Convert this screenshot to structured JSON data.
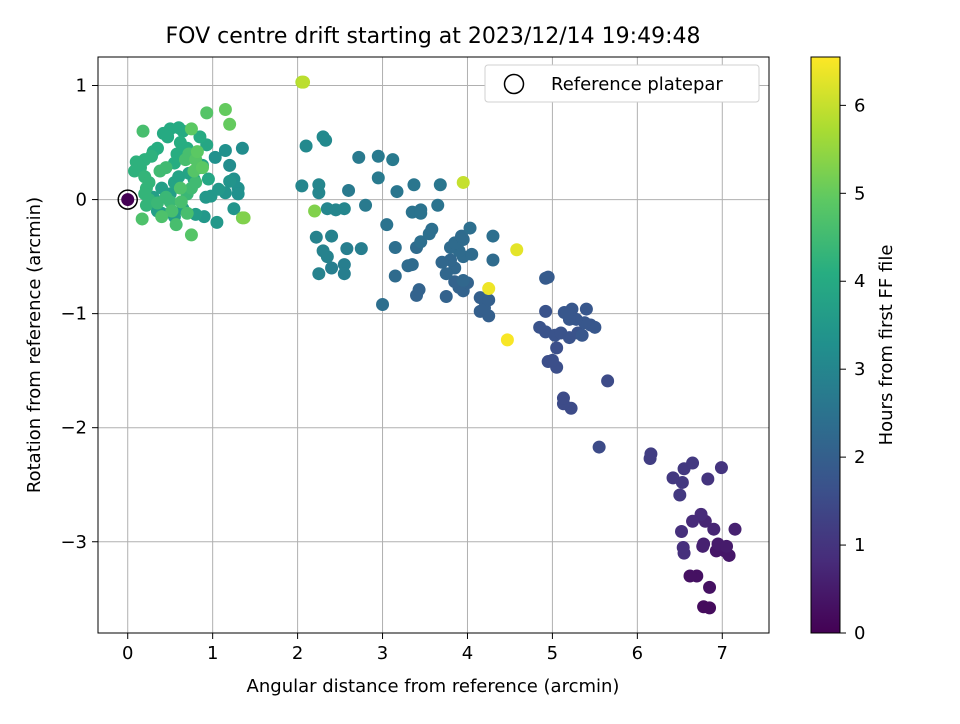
{
  "chart_data": {
    "type": "scatter",
    "title": "FOV centre drift starting at 2023/12/14 19:49:48",
    "xlabel": "Angular distance from reference (arcmin)",
    "ylabel": "Rotation from reference (arcmin)",
    "xlim": [
      -0.35,
      7.55
    ],
    "ylim": [
      -3.8,
      1.25
    ],
    "xticks": [
      0,
      1,
      2,
      3,
      4,
      5,
      6,
      7
    ],
    "yticks": [
      1,
      0,
      -1,
      -2,
      -3
    ],
    "x_tick_labels": [
      "0",
      "1",
      "2",
      "3",
      "4",
      "5",
      "6",
      "7"
    ],
    "y_tick_labels": [
      "1",
      "0",
      "−1",
      "−2",
      "−3"
    ],
    "grid": true,
    "colormap": "viridis",
    "colorbar": {
      "label": "Hours from first FF file",
      "range": [
        0,
        6.55
      ],
      "ticks": [
        0,
        1,
        2,
        3,
        4,
        5,
        6
      ],
      "tick_labels": [
        "0",
        "1",
        "2",
        "3",
        "4",
        "5",
        "6"
      ]
    },
    "legend": {
      "position": "top-right",
      "entries": [
        {
          "label": "Reference platepar",
          "marker": "hollow-circle"
        }
      ]
    },
    "reference_point": {
      "x": 0,
      "y": 0
    },
    "points": [
      [
        0,
        0,
        0.0
      ],
      [
        6.78,
        -3.57,
        0.2
      ],
      [
        6.85,
        -3.58,
        0.2
      ],
      [
        6.85,
        -3.4,
        0.3
      ],
      [
        6.7,
        -3.3,
        0.3
      ],
      [
        6.62,
        -3.3,
        0.3
      ],
      [
        7.03,
        -3.08,
        0.4
      ],
      [
        6.93,
        -3.08,
        0.4
      ],
      [
        7.08,
        -3.12,
        0.4
      ],
      [
        6.95,
        -3.02,
        0.5
      ],
      [
        7.05,
        -3.04,
        0.5
      ],
      [
        6.77,
        -3.04,
        0.6
      ],
      [
        6.78,
        -3.02,
        0.6
      ],
      [
        7.15,
        -2.89,
        0.6
      ],
      [
        6.9,
        -2.89,
        0.7
      ],
      [
        6.8,
        -2.82,
        0.7
      ],
      [
        6.75,
        -2.76,
        0.8
      ],
      [
        6.65,
        -2.82,
        0.8
      ],
      [
        6.55,
        -3.1,
        0.9
      ],
      [
        6.54,
        -3.05,
        0.9
      ],
      [
        6.52,
        -2.91,
        0.9
      ],
      [
        6.83,
        -2.45,
        1.0
      ],
      [
        6.99,
        -2.35,
        1.0
      ],
      [
        6.5,
        -2.59,
        1.1
      ],
      [
        6.53,
        -2.48,
        1.1
      ],
      [
        6.42,
        -2.44,
        1.1
      ],
      [
        6.55,
        -2.36,
        1.1
      ],
      [
        6.65,
        -2.31,
        1.1
      ],
      [
        6.15,
        -2.27,
        1.2
      ],
      [
        6.16,
        -2.23,
        1.2
      ],
      [
        5.55,
        -2.17,
        1.5
      ],
      [
        5.65,
        -1.59,
        1.5
      ],
      [
        5.22,
        -1.83,
        1.5
      ],
      [
        5.13,
        -1.79,
        1.5
      ],
      [
        5.13,
        -1.74,
        1.5
      ],
      [
        5.05,
        -1.47,
        1.6
      ],
      [
        4.95,
        -1.42,
        1.6
      ],
      [
        5.0,
        -1.41,
        1.6
      ],
      [
        5.05,
        -1.3,
        1.6
      ],
      [
        4.92,
        -1.16,
        1.7
      ],
      [
        4.85,
        -1.12,
        1.7
      ],
      [
        4.92,
        -0.98,
        1.7
      ],
      [
        5.03,
        -1.19,
        1.7
      ],
      [
        5.1,
        -1.17,
        1.7
      ],
      [
        5.2,
        -1.21,
        1.7
      ],
      [
        5.3,
        -1.17,
        1.7
      ],
      [
        5.35,
        -1.19,
        1.8
      ],
      [
        5.45,
        -1.1,
        1.8
      ],
      [
        5.5,
        -1.12,
        1.8
      ],
      [
        5.38,
        -1.08,
        1.8
      ],
      [
        5.28,
        -1.05,
        1.8
      ],
      [
        5.2,
        -1.05,
        1.8
      ],
      [
        5.14,
        -0.99,
        1.8
      ],
      [
        5.23,
        -0.96,
        1.8
      ],
      [
        5.4,
        -0.96,
        1.8
      ],
      [
        4.95,
        -0.68,
        1.9
      ],
      [
        4.92,
        -0.69,
        1.9
      ],
      [
        5.17,
        -1.0,
        1.8
      ],
      [
        4.15,
        -0.98,
        2.0
      ],
      [
        4.25,
        -1.02,
        2.0
      ],
      [
        4.2,
        -0.95,
        2.0
      ],
      [
        4.15,
        -0.86,
        2.0
      ],
      [
        4.25,
        -0.88,
        2.0
      ],
      [
        3.9,
        -0.77,
        2.1
      ],
      [
        3.95,
        -0.8,
        2.1
      ],
      [
        3.85,
        -0.72,
        2.1
      ],
      [
        4.0,
        -0.73,
        2.1
      ],
      [
        3.75,
        -0.85,
        2.1
      ],
      [
        3.95,
        -0.71,
        2.2
      ],
      [
        3.4,
        -0.84,
        2.1
      ],
      [
        3.43,
        -0.79,
        2.1
      ],
      [
        3.85,
        -0.6,
        2.2
      ],
      [
        3.75,
        -0.65,
        2.2
      ],
      [
        3.8,
        -0.53,
        2.2
      ],
      [
        3.7,
        -0.55,
        2.2
      ],
      [
        3.95,
        -0.5,
        2.3
      ],
      [
        3.9,
        -0.45,
        2.3
      ],
      [
        3.8,
        -0.42,
        2.3
      ],
      [
        3.85,
        -0.38,
        2.3
      ],
      [
        3.95,
        -0.35,
        2.3
      ],
      [
        4.05,
        -0.48,
        2.3
      ],
      [
        3.93,
        -0.32,
        2.3
      ],
      [
        4.03,
        -0.25,
        2.4
      ],
      [
        4.3,
        -0.53,
        2.3
      ],
      [
        4.3,
        -0.32,
        2.4
      ],
      [
        3.4,
        -0.42,
        2.3
      ],
      [
        3.35,
        -0.57,
        2.3
      ],
      [
        3.3,
        -0.58,
        2.3
      ],
      [
        3.15,
        -0.67,
        2.3
      ],
      [
        3.15,
        -0.42,
        2.4
      ],
      [
        3.05,
        -0.22,
        2.5
      ],
      [
        3.0,
        -0.92,
        2.4
      ],
      [
        3.45,
        -0.37,
        2.4
      ],
      [
        3.55,
        -0.3,
        2.4
      ],
      [
        3.58,
        -0.26,
        2.4
      ],
      [
        3.35,
        -0.11,
        2.5
      ],
      [
        3.45,
        -0.09,
        2.5
      ],
      [
        3.45,
        -0.12,
        2.5
      ],
      [
        3.65,
        -0.05,
        2.5
      ],
      [
        3.68,
        0.13,
        2.6
      ],
      [
        3.37,
        0.13,
        2.6
      ],
      [
        3.17,
        0.07,
        2.6
      ],
      [
        2.95,
        0.19,
        2.7
      ],
      [
        2.95,
        0.38,
        2.7
      ],
      [
        3.12,
        0.35,
        2.7
      ],
      [
        2.72,
        0.37,
        2.7
      ],
      [
        2.8,
        -0.05,
        2.7
      ],
      [
        2.6,
        0.08,
        2.7
      ],
      [
        2.75,
        -0.43,
        2.8
      ],
      [
        2.58,
        -0.43,
        2.8
      ],
      [
        2.55,
        -0.57,
        2.8
      ],
      [
        2.55,
        -0.65,
        2.8
      ],
      [
        2.4,
        -0.6,
        2.8
      ],
      [
        2.35,
        -0.5,
        2.9
      ],
      [
        2.3,
        -0.45,
        2.9
      ],
      [
        2.25,
        -0.65,
        2.9
      ],
      [
        2.22,
        -0.33,
        2.9
      ],
      [
        2.4,
        -0.32,
        2.9
      ],
      [
        2.35,
        -0.08,
        3.0
      ],
      [
        2.45,
        -0.09,
        3.0
      ],
      [
        2.55,
        -0.08,
        3.0
      ],
      [
        2.25,
        0.06,
        3.0
      ],
      [
        2.25,
        0.13,
        3.0
      ],
      [
        2.05,
        0.12,
        3.0
      ],
      [
        2.1,
        0.47,
        3.1
      ],
      [
        2.3,
        0.55,
        3.1
      ],
      [
        2.33,
        0.52,
        3.1
      ],
      [
        1.35,
        0.45,
        3.2
      ],
      [
        1.2,
        0.3,
        3.2
      ],
      [
        1.15,
        0.43,
        3.3
      ],
      [
        1.03,
        0.37,
        3.3
      ],
      [
        1.25,
        0.18,
        3.3
      ],
      [
        1.3,
        0.1,
        3.3
      ],
      [
        1.3,
        0.05,
        3.3
      ],
      [
        1.2,
        0.16,
        3.4
      ],
      [
        1.15,
        0.06,
        3.4
      ],
      [
        1.07,
        0.09,
        3.5
      ],
      [
        0.98,
        0.03,
        3.5
      ],
      [
        0.92,
        0.02,
        3.5
      ],
      [
        1.25,
        -0.08,
        3.4
      ],
      [
        1.05,
        -0.2,
        3.5
      ],
      [
        0.9,
        -0.15,
        3.5
      ],
      [
        0.8,
        -0.13,
        3.6
      ],
      [
        0.65,
        -0.08,
        3.6
      ],
      [
        0.55,
        -0.15,
        3.6
      ],
      [
        0.4,
        -0.12,
        3.7
      ],
      [
        0.35,
        -0.1,
        3.7
      ],
      [
        0.3,
        0.02,
        3.7
      ],
      [
        0.4,
        0.1,
        3.7
      ],
      [
        0.5,
        0.05,
        3.7
      ],
      [
        0.55,
        0.15,
        3.8
      ],
      [
        0.6,
        0.2,
        3.8
      ],
      [
        0.72,
        0.23,
        3.8
      ],
      [
        0.78,
        0.18,
        3.8
      ],
      [
        0.85,
        0.28,
        3.8
      ],
      [
        0.88,
        0.3,
        3.8
      ],
      [
        0.95,
        0.18,
        3.9
      ],
      [
        0.93,
        0.48,
        3.9
      ],
      [
        0.85,
        0.55,
        4.0
      ],
      [
        0.65,
        0.6,
        4.0
      ],
      [
        0.6,
        0.63,
        4.0
      ],
      [
        0.5,
        0.62,
        4.0
      ],
      [
        0.42,
        0.58,
        4.0
      ],
      [
        0.47,
        0.55,
        4.0
      ],
      [
        0.62,
        0.5,
        4.1
      ],
      [
        0.7,
        0.45,
        4.1
      ],
      [
        0.58,
        0.4,
        4.1
      ],
      [
        0.55,
        0.32,
        4.1
      ],
      [
        0.35,
        0.45,
        4.1
      ],
      [
        0.3,
        0.42,
        4.1
      ],
      [
        0.28,
        0.38,
        4.2
      ],
      [
        0.2,
        0.35,
        4.2
      ],
      [
        0.15,
        0.28,
        4.2
      ],
      [
        0.1,
        0.33,
        4.2
      ],
      [
        0.12,
        0.3,
        4.2
      ],
      [
        0.08,
        0.25,
        4.2
      ],
      [
        0.2,
        0.2,
        4.3
      ],
      [
        0.25,
        0.15,
        4.3
      ],
      [
        0.22,
        0.1,
        4.3
      ],
      [
        0.2,
        0.05,
        4.3
      ],
      [
        0.25,
        0.0,
        4.3
      ],
      [
        0.22,
        -0.05,
        4.3
      ],
      [
        0.35,
        -0.03,
        4.4
      ],
      [
        0.45,
        0.02,
        4.4
      ],
      [
        0.5,
        -0.02,
        4.4
      ],
      [
        0.7,
        0.05,
        4.4
      ],
      [
        0.75,
        0.1,
        4.5
      ],
      [
        0.8,
        0.15,
        4.5
      ],
      [
        0.38,
        0.25,
        4.5
      ],
      [
        0.45,
        0.28,
        4.5
      ],
      [
        0.68,
        0.35,
        4.6
      ],
      [
        0.72,
        0.4,
        4.6
      ],
      [
        0.18,
        0.6,
        4.6
      ],
      [
        0.63,
        -0.02,
        4.6
      ],
      [
        0.7,
        -0.12,
        4.6
      ],
      [
        0.57,
        -0.22,
        4.6
      ],
      [
        0.52,
        -0.1,
        4.6
      ],
      [
        0.4,
        -0.15,
        4.7
      ],
      [
        0.17,
        -0.17,
        4.7
      ],
      [
        0.62,
        0.1,
        4.7
      ],
      [
        0.78,
        0.25,
        4.8
      ],
      [
        0.93,
        0.76,
        4.8
      ],
      [
        0.75,
        -0.31,
        4.8
      ],
      [
        0.8,
        0.35,
        4.8
      ],
      [
        0.75,
        0.62,
        4.9
      ],
      [
        0.82,
        0.42,
        4.9
      ],
      [
        0.88,
        0.28,
        4.9
      ],
      [
        1.2,
        0.66,
        5.0
      ],
      [
        1.15,
        0.79,
        5.0
      ],
      [
        1.35,
        -0.16,
        5.2
      ],
      [
        1.37,
        -0.16,
        5.3
      ],
      [
        2.2,
        -0.1,
        5.3
      ],
      [
        2.05,
        1.03,
        5.8
      ],
      [
        2.07,
        1.03,
        5.9
      ],
      [
        3.95,
        0.15,
        6.0
      ],
      [
        4.58,
        -0.44,
        6.3
      ],
      [
        4.25,
        -0.78,
        6.4
      ],
      [
        4.47,
        -1.23,
        6.5
      ]
    ]
  }
}
